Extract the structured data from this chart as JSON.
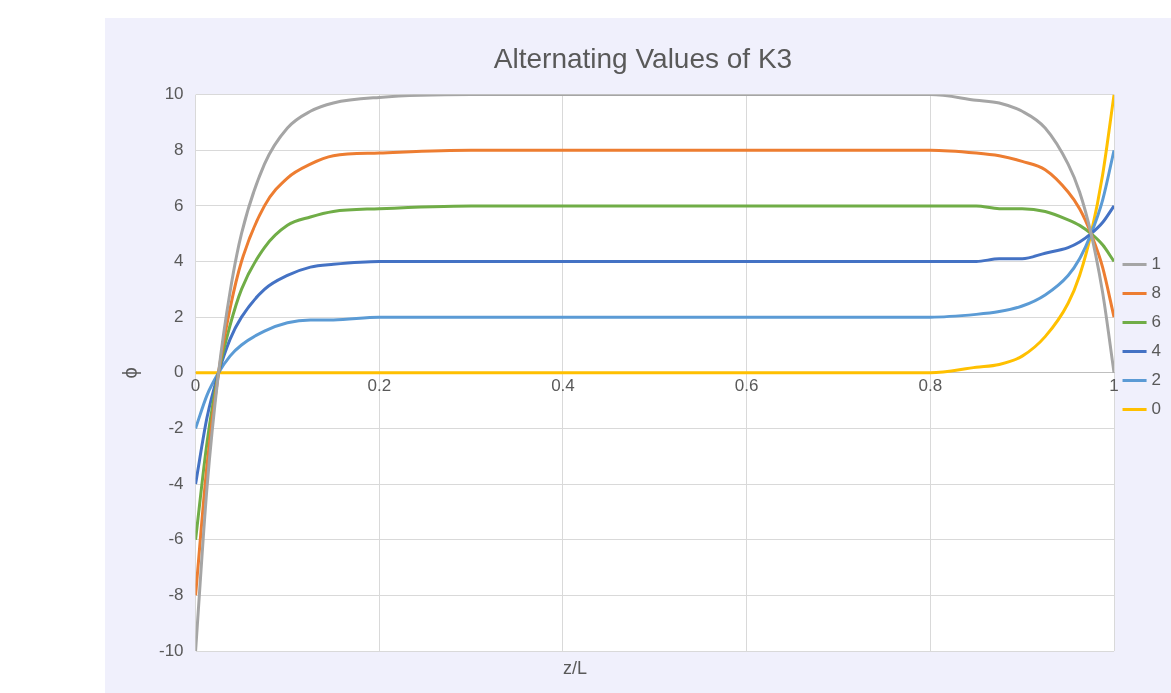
{
  "chart_data": {
    "type": "line",
    "title": "Alternating Values of K3",
    "xlabel": "z/L",
    "ylabel": "ϕ",
    "x": [
      0,
      0.0125,
      0.025,
      0.0375,
      0.05,
      0.075,
      0.1,
      0.125,
      0.15,
      0.2,
      0.3,
      0.5,
      0.7,
      0.8,
      0.85,
      0.875,
      0.9,
      0.925,
      0.95,
      0.9625,
      0.975,
      0.9875,
      1
    ],
    "series": [
      {
        "name": "1",
        "color": "#a5a5a5",
        "values": [
          -10,
          -4.1,
          0,
          2.9,
          5,
          7.5,
          8.8,
          9.4,
          9.7,
          9.9,
          10,
          10,
          10,
          10,
          9.8,
          9.7,
          9.4,
          8.8,
          7.5,
          6.5,
          5,
          2.9,
          0
        ]
      },
      {
        "name": "8",
        "color": "#ed7d31",
        "values": [
          -8,
          -3.3,
          0,
          2.3,
          4,
          6,
          7,
          7.5,
          7.8,
          7.9,
          8,
          8,
          8,
          8,
          7.9,
          7.8,
          7.6,
          7.3,
          6.5,
          5.9,
          5,
          3.8,
          2
        ]
      },
      {
        "name": "6",
        "color": "#70ad47",
        "values": [
          -6,
          -2.5,
          0,
          1.7,
          3,
          4.5,
          5.3,
          5.6,
          5.8,
          5.9,
          6,
          6,
          6,
          6,
          6,
          5.9,
          5.9,
          5.8,
          5.5,
          5.3,
          5,
          4.6,
          4
        ]
      },
      {
        "name": "4",
        "color": "#4472c4",
        "values": [
          -4,
          -1.6,
          0,
          1.2,
          2,
          3,
          3.5,
          3.8,
          3.9,
          4,
          4,
          4,
          4,
          4,
          4,
          4.1,
          4.1,
          4.3,
          4.5,
          4.7,
          5,
          5.4,
          6
        ]
      },
      {
        "name": "2",
        "color": "#5b9bd5",
        "values": [
          -2,
          -0.8,
          0,
          0.6,
          1,
          1.5,
          1.8,
          1.9,
          1.9,
          2,
          2,
          2,
          2,
          2,
          2.1,
          2.2,
          2.4,
          2.8,
          3.5,
          4.1,
          5,
          6.2,
          8
        ]
      },
      {
        "name": "0",
        "color": "#ffc000",
        "values": [
          0,
          0,
          0,
          0,
          0,
          0,
          0,
          0,
          0,
          0,
          0,
          0,
          0,
          0,
          0.2,
          0.3,
          0.6,
          1.3,
          2.5,
          3.5,
          5,
          7.1,
          10
        ]
      }
    ],
    "xlim": [
      0,
      1
    ],
    "xticks": [
      0,
      0.2,
      0.4,
      0.6,
      0.8,
      1
    ],
    "ylim": [
      -10,
      10
    ],
    "yticks": [
      -10,
      -8,
      -6,
      -4,
      -2,
      0,
      2,
      4,
      6,
      8,
      10
    ],
    "grid": true,
    "legend": "right",
    "marker": "none",
    "line_style": "solid"
  }
}
